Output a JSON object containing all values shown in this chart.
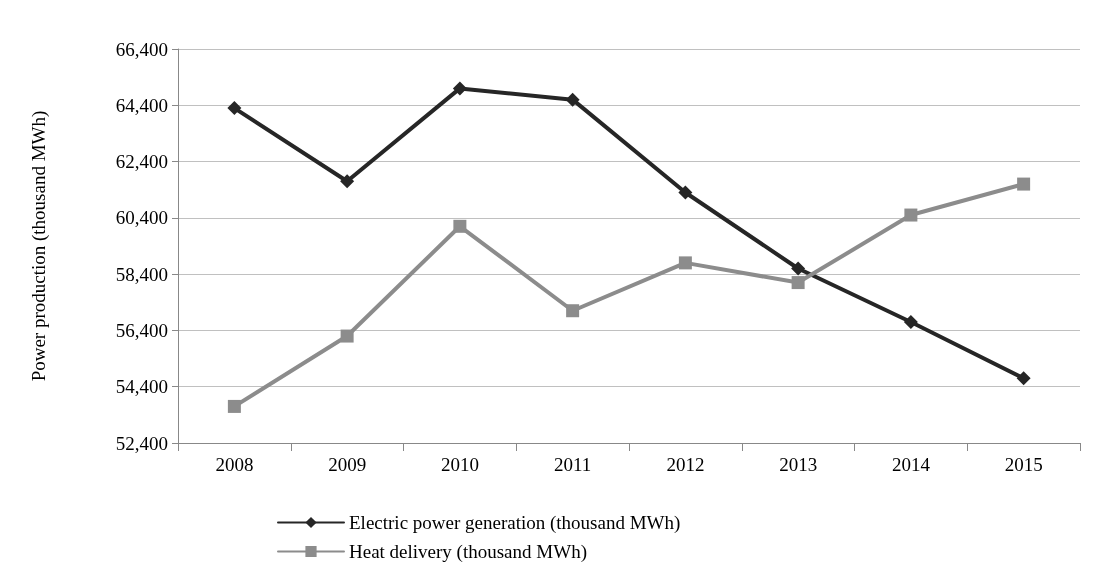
{
  "chart_data": {
    "type": "line",
    "ylabel": "Power production (thousand MWh)",
    "categories": [
      "2008",
      "2009",
      "2010",
      "2011",
      "2012",
      "2013",
      "2014",
      "2015"
    ],
    "series": [
      {
        "name": "Electric power generation (thousand MWh)",
        "color": "#262626",
        "marker": "diamond",
        "values": [
          64300,
          61700,
          65000,
          64600,
          61300,
          58600,
          56700,
          54700
        ]
      },
      {
        "name": "Heat delivery (thousand MWh)",
        "color": "#8c8c8c",
        "marker": "square",
        "values": [
          53700,
          56200,
          60100,
          57100,
          58800,
          58100,
          60500,
          61600
        ]
      }
    ],
    "ylim": [
      52400,
      66400
    ],
    "yticks": [
      {
        "value": 52400,
        "label": "52,400"
      },
      {
        "value": 54400,
        "label": "54,400"
      },
      {
        "value": 56400,
        "label": "56,400"
      },
      {
        "value": 58400,
        "label": "58,400"
      },
      {
        "value": 60400,
        "label": "60,400"
      },
      {
        "value": 62400,
        "label": "62,400"
      },
      {
        "value": 64400,
        "label": "64,400"
      },
      {
        "value": 66400,
        "label": "66,400"
      }
    ],
    "grid": "y",
    "legend": "bottom",
    "line_style": "solid"
  }
}
